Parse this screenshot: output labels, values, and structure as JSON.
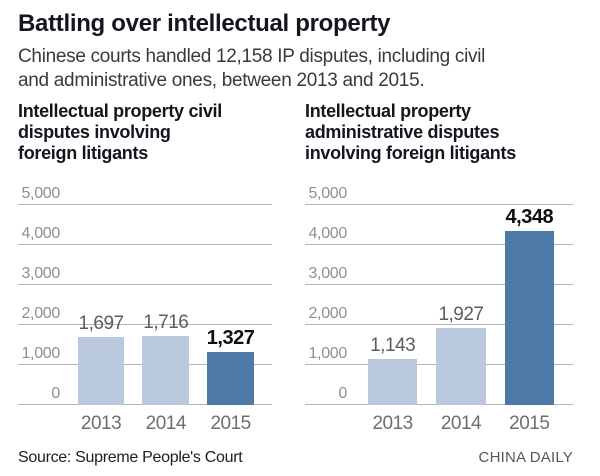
{
  "header": {
    "title": "Battling over intellectual property",
    "subtitle_lines": [
      "Chinese courts handled 12,158 IP disputes, including civil",
      "and administrative ones, between 2013 and 2015."
    ]
  },
  "chart_data": [
    {
      "type": "bar",
      "title": "Intellectual property civil disputes involving foreign litigants",
      "categories": [
        "2013",
        "2014",
        "2015"
      ],
      "values": [
        1697,
        1716,
        1327
      ],
      "value_labels": [
        "1,697",
        "1,716",
        "1,327"
      ],
      "emphasized_index": 2,
      "ylim": [
        0,
        5000
      ],
      "yticks": [
        {
          "label": "5,000",
          "value": 5000
        },
        {
          "label": "4,000",
          "value": 4000
        },
        {
          "label": "3,000",
          "value": 3000
        },
        {
          "label": "2,000",
          "value": 2000
        },
        {
          "label": "1,000",
          "value": 1000
        },
        {
          "label": "0",
          "value": 0
        }
      ],
      "bar_colors": [
        "#b9c8dd",
        "#b9c8dd",
        "#4d79a6"
      ],
      "grid": true,
      "legend": "none",
      "xlabel": "",
      "ylabel": ""
    },
    {
      "type": "bar",
      "title": "Intellectual property administrative disputes involving foreign litigants",
      "categories": [
        "2013",
        "2014",
        "2015"
      ],
      "values": [
        1143,
        1927,
        4348
      ],
      "value_labels": [
        "1,143",
        "1,927",
        "4,348"
      ],
      "emphasized_index": 2,
      "ylim": [
        0,
        5000
      ],
      "yticks": [
        {
          "label": "5,000",
          "value": 5000
        },
        {
          "label": "4,000",
          "value": 4000
        },
        {
          "label": "3,000",
          "value": 3000
        },
        {
          "label": "2,000",
          "value": 2000
        },
        {
          "label": "1,000",
          "value": 1000
        },
        {
          "label": "0",
          "value": 0
        }
      ],
      "bar_colors": [
        "#b9c8dd",
        "#b9c8dd",
        "#4d79a6"
      ],
      "grid": true,
      "legend": "none",
      "xlabel": "",
      "ylabel": ""
    }
  ],
  "footer": {
    "source": "Source: Supreme People's Court",
    "credit": "CHINA DAILY"
  },
  "colors": {
    "title": "#15151f",
    "subtitle": "#3a3a3e",
    "bar_light": "#b9c8dd",
    "bar_highlight": "#4d79a6",
    "gridline": "#b4b4b6",
    "tick_label": "#8f8f92",
    "category_label": "#6e6e70",
    "value_label": "#5c5c60",
    "value_label_emphasized": "#0f0f13",
    "source_text": "#202024",
    "credit_text": "#57575b"
  }
}
